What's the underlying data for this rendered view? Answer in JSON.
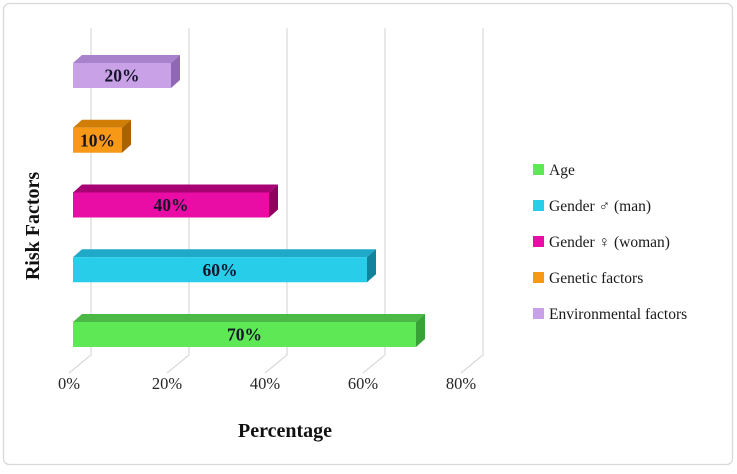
{
  "figure": {
    "background": "#FFFFFF",
    "border_color": "#D9D9D9",
    "gridline_color": "#D9D9D9"
  },
  "chart_data": {
    "type": "bar",
    "orientation": "horizontal",
    "style": "3d",
    "title": "",
    "xlabel": "Percentage",
    "ylabel": "Risk Factors",
    "x_ticks": [
      "0%",
      "20%",
      "40%",
      "60%",
      "80%"
    ],
    "x_tick_values": [
      0,
      20,
      40,
      60,
      80
    ],
    "xlim": [
      0,
      80
    ],
    "grid": true,
    "legend_position": "right",
    "bar_order_note": "legend order top-to-bottom; bars drawn bottom-to-top (Age is bottom bar)",
    "series": [
      {
        "name": "Age",
        "value": 70,
        "label": "70%",
        "color": "#5FE856",
        "color_top": "#4CB845",
        "color_side": "#37A337"
      },
      {
        "name": "Gender ♂ (man)",
        "value": 60,
        "label": "60%",
        "color": "#27CDE9",
        "color_top": "#1FA9C9",
        "color_side": "#12839C"
      },
      {
        "name": "Gender ♀ (woman)",
        "value": 40,
        "label": "40%",
        "color": "#EA0DA5",
        "color_top": "#A80174",
        "color_side": "#90015F"
      },
      {
        "name": "Genetic factors",
        "value": 10,
        "label": "10%",
        "color": "#F79817",
        "color_top": "#D07E06",
        "color_side": "#A86300"
      },
      {
        "name": "Environmental factors",
        "value": 20,
        "label": "20%",
        "color": "#C9A1E7",
        "color_top": "#A982CC",
        "color_side": "#8F67B5"
      }
    ],
    "data_label_color": "#14142B",
    "tick_label_color": "#262626",
    "axis_title_color": "#111111"
  }
}
